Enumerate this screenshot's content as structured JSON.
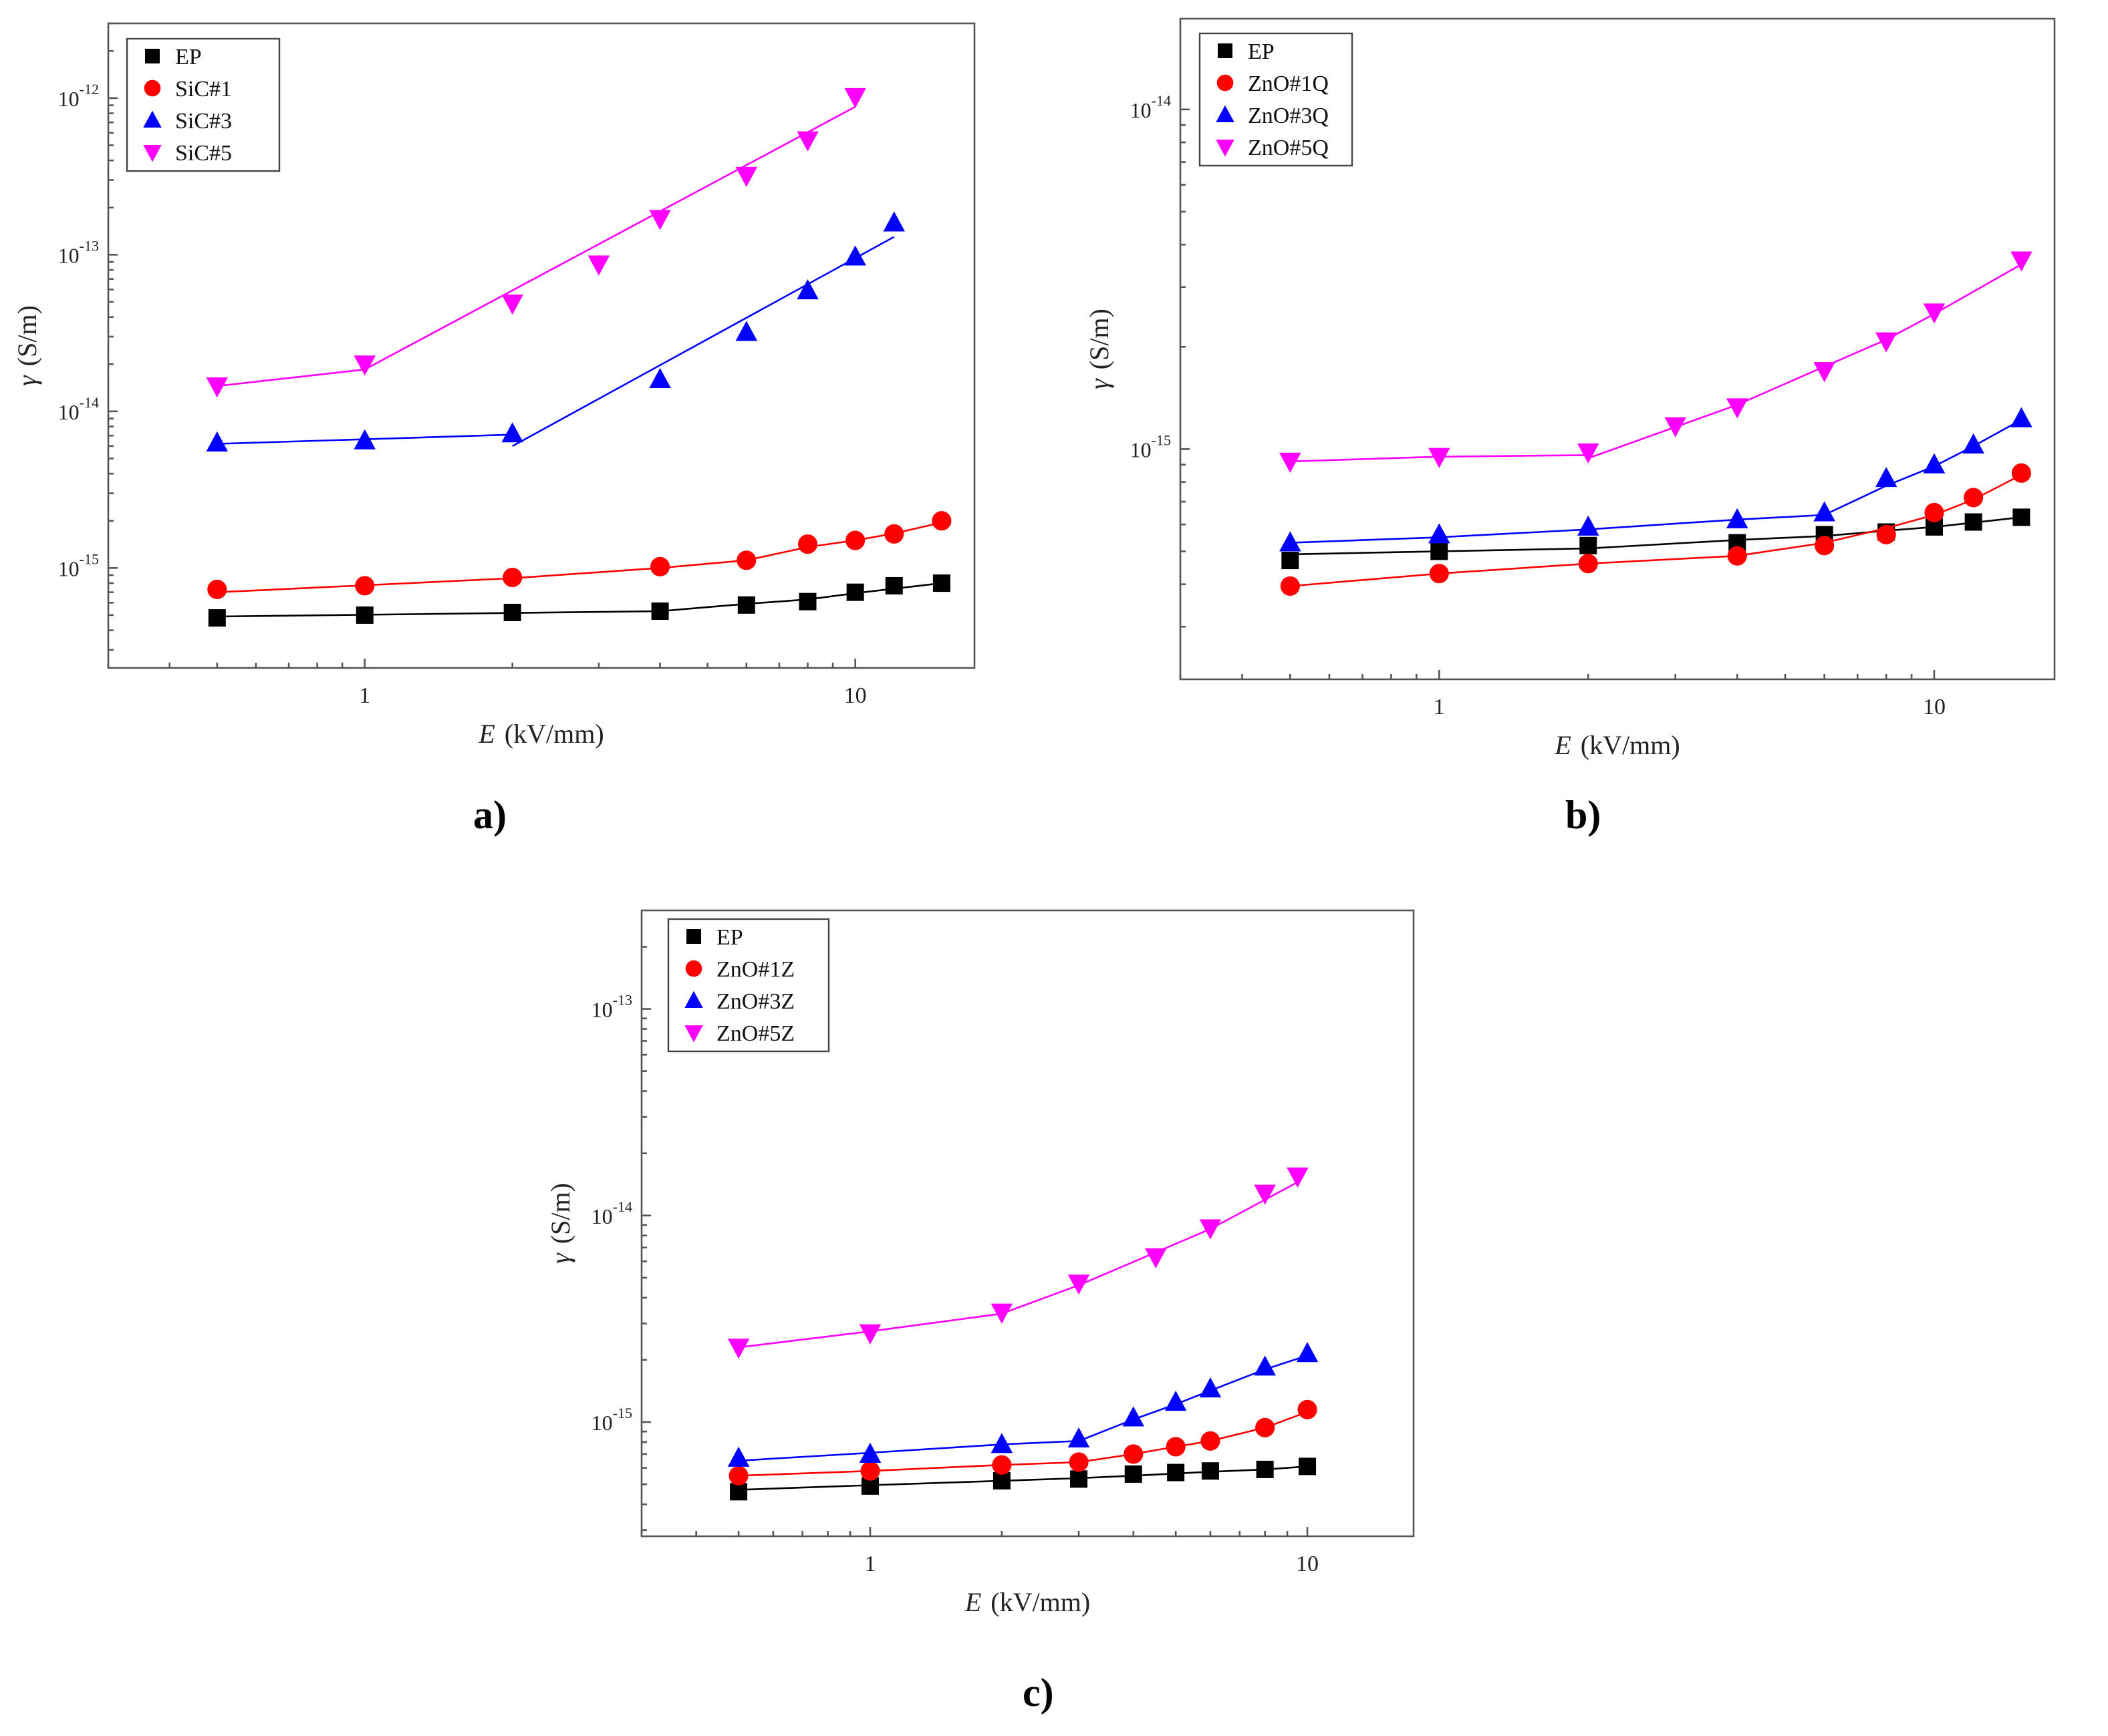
{
  "colors": {
    "EP": "#000000",
    "red": "#ff0000",
    "blue": "#0000ff",
    "magenta": "#ff00ff"
  },
  "panel_labels": {
    "a": "a)",
    "b": "b)",
    "c": "c)"
  },
  "chart_data": [
    {
      "id": "a",
      "type": "scatter",
      "xscale": "log",
      "yscale": "log",
      "xlabel_var": "E",
      "xlabel_unit": "(kV/mm)",
      "ylabel_var": "γ",
      "ylabel_unit": "(S/m)",
      "xlim": [
        0.3,
        17.5
      ],
      "ylim": [
        2.3e-16,
        3e-12
      ],
      "xticks": [
        {
          "v": 1,
          "t": "1"
        },
        {
          "v": 10,
          "t": "10"
        }
      ],
      "yticks": [
        {
          "v": 1e-15,
          "m": "10",
          "e": "-15"
        },
        {
          "v": 1e-14,
          "m": "10",
          "e": "-14"
        },
        {
          "v": 1e-13,
          "m": "10",
          "e": "-13"
        },
        {
          "v": 1e-12,
          "m": "10",
          "e": "-12"
        }
      ],
      "legend_position": "top-left",
      "series": [
        {
          "name": "EP",
          "marker": "square",
          "color": "#000000",
          "x": [
            0.5,
            1,
            2,
            4,
            6,
            8,
            10,
            12,
            15
          ],
          "y": [
            4.8e-16,
            5e-16,
            5.2e-16,
            5.3e-16,
            5.8e-16,
            6.1e-16,
            7e-16,
            7.7e-16,
            8e-16
          ],
          "fit": [
            [
              [
                0.5,
                4.9e-16
              ],
              [
                4,
                5.3e-16
              ],
              [
                6,
                5.9e-16
              ],
              [
                8,
                6.3e-16
              ],
              [
                10,
                6.9e-16
              ],
              [
                15,
                8e-16
              ]
            ]
          ]
        },
        {
          "name": "SiC#1",
          "marker": "circle",
          "color": "#ff0000",
          "x": [
            0.5,
            1,
            2,
            4,
            6,
            8,
            10,
            12,
            15
          ],
          "y": [
            7.3e-16,
            7.7e-16,
            8.7e-16,
            1.02e-15,
            1.12e-15,
            1.42e-15,
            1.5e-15,
            1.65e-15,
            2e-15
          ],
          "fit": [
            [
              [
                0.5,
                7e-16
              ],
              [
                2,
                8.6e-16
              ],
              [
                4,
                1e-15
              ],
              [
                6,
                1.12e-15
              ],
              [
                8,
                1.36e-15
              ],
              [
                10,
                1.5e-15
              ],
              [
                12,
                1.66e-15
              ],
              [
                15,
                1.95e-15
              ]
            ]
          ]
        },
        {
          "name": "SiC#3",
          "marker": "triangle-up",
          "color": "#0000ff",
          "x": [
            0.5,
            1,
            2,
            4,
            6,
            8,
            10,
            12
          ],
          "y": [
            6.3e-15,
            6.5e-15,
            7.2e-15,
            1.6e-14,
            3.2e-14,
            5.9e-14,
            9.7e-14,
            1.6e-13
          ],
          "fit": [
            [
              [
                0.5,
                6.2e-15
              ],
              [
                2,
                7.1e-15
              ]
            ],
            [
              [
                2,
                6e-15
              ],
              [
                12,
                1.3e-13
              ]
            ]
          ]
        },
        {
          "name": "SiC#5",
          "marker": "triangle-down",
          "color": "#ff00ff",
          "x": [
            0.5,
            1,
            2,
            3,
            4,
            6,
            8,
            10
          ],
          "y": [
            1.45e-14,
            2e-14,
            4.9e-14,
            8.7e-14,
            1.7e-13,
            3.2e-13,
            5.4e-13,
            1.02e-12
          ],
          "fit": [
            [
              [
                0.5,
                1.45e-14
              ],
              [
                1,
                1.85e-14
              ],
              [
                10,
                8.8e-13
              ]
            ]
          ]
        }
      ]
    },
    {
      "id": "b",
      "type": "scatter",
      "xscale": "log",
      "yscale": "log",
      "xlabel_var": "E",
      "xlabel_unit": "(kV/mm)",
      "ylabel_var": "γ",
      "ylabel_unit": "(S/m)",
      "xlim": [
        0.3,
        17.5
      ],
      "ylim": [
        2.1e-16,
        1.85e-14
      ],
      "xticks": [
        {
          "v": 1,
          "t": "1"
        },
        {
          "v": 10,
          "t": "10"
        }
      ],
      "yticks": [
        {
          "v": 1e-15,
          "m": "10",
          "e": "-15"
        },
        {
          "v": 1e-14,
          "m": "10",
          "e": "-14"
        }
      ],
      "legend_position": "top-left",
      "series": [
        {
          "name": "EP",
          "marker": "square",
          "color": "#000000",
          "x": [
            0.5,
            1,
            2,
            4,
            6,
            8,
            10,
            12,
            15
          ],
          "y": [
            4.7e-16,
            5e-16,
            5.2e-16,
            5.3e-16,
            5.6e-16,
            5.7e-16,
            5.9e-16,
            6.1e-16,
            6.3e-16
          ],
          "fit": [
            [
              [
                0.5,
                4.9e-16
              ],
              [
                1,
                5e-16
              ],
              [
                2,
                5.1e-16
              ],
              [
                4,
                5.4e-16
              ],
              [
                6,
                5.55e-16
              ],
              [
                8,
                5.75e-16
              ],
              [
                10,
                5.9e-16
              ],
              [
                15,
                6.3e-16
              ]
            ]
          ]
        },
        {
          "name": "ZnO#1Q",
          "marker": "circle",
          "color": "#ff0000",
          "x": [
            0.5,
            1,
            2,
            4,
            6,
            8,
            10,
            12,
            15
          ],
          "y": [
            3.95e-16,
            4.3e-16,
            4.6e-16,
            4.85e-16,
            5.2e-16,
            5.6e-16,
            6.5e-16,
            7.2e-16,
            8.5e-16
          ],
          "fit": [
            [
              [
                0.5,
                3.95e-16
              ],
              [
                1,
                4.3e-16
              ],
              [
                2,
                4.6e-16
              ],
              [
                4,
                4.85e-16
              ],
              [
                6,
                5.3e-16
              ],
              [
                8,
                5.85e-16
              ],
              [
                10,
                6.4e-16
              ],
              [
                12,
                7.1e-16
              ],
              [
                15,
                8.4e-16
              ]
            ]
          ]
        },
        {
          "name": "ZnO#3Q",
          "marker": "triangle-up",
          "color": "#0000ff",
          "x": [
            0.5,
            1,
            2,
            4,
            6,
            8,
            10,
            12,
            15
          ],
          "y": [
            5.3e-16,
            5.6e-16,
            5.9e-16,
            6.2e-16,
            6.5e-16,
            8.2e-16,
            9e-16,
            1.03e-15,
            1.23e-15
          ],
          "fit": [
            [
              [
                0.5,
                5.3e-16
              ],
              [
                1,
                5.5e-16
              ],
              [
                2,
                5.8e-16
              ],
              [
                4,
                6.2e-16
              ],
              [
                6,
                6.4e-16
              ],
              [
                8,
                7.8e-16
              ],
              [
                10,
                8.9e-16
              ],
              [
                12,
                1.02e-15
              ],
              [
                15,
                1.22e-15
              ]
            ]
          ]
        },
        {
          "name": "ZnO#5Q",
          "marker": "triangle-down",
          "color": "#ff00ff",
          "x": [
            0.5,
            1,
            2,
            3,
            4,
            6,
            8,
            10,
            15
          ],
          "y": [
            9.2e-16,
            9.5e-16,
            9.8e-16,
            1.17e-15,
            1.33e-15,
            1.7e-15,
            2.08e-15,
            2.53e-15,
            3.6e-15
          ],
          "fit": [
            [
              [
                0.5,
                9.2e-16
              ],
              [
                1,
                9.5e-16
              ],
              [
                2,
                9.6e-16
              ]
            ],
            [
              [
                2,
                9.4e-16
              ],
              [
                4,
                1.35e-15
              ],
              [
                6,
                1.75e-15
              ],
              [
                8,
                2.1e-15
              ],
              [
                10,
                2.5e-15
              ],
              [
                15,
                3.5e-15
              ]
            ]
          ]
        }
      ]
    },
    {
      "id": "c",
      "type": "scatter",
      "xscale": "log",
      "yscale": "log",
      "xlabel_var": "E",
      "xlabel_unit": "(kV/mm)",
      "ylabel_var": "γ",
      "ylabel_unit": "(S/m)",
      "xlim": [
        0.3,
        17.5
      ],
      "ylim": [
        2.8e-16,
        3e-13
      ],
      "xticks": [
        {
          "v": 1,
          "t": "1"
        },
        {
          "v": 10,
          "t": "10"
        }
      ],
      "yticks": [
        {
          "v": 1e-15,
          "m": "10",
          "e": "-15"
        },
        {
          "v": 1e-14,
          "m": "10",
          "e": "-14"
        },
        {
          "v": 1e-13,
          "m": "10",
          "e": "-13"
        }
      ],
      "legend_position": "top-left",
      "series": [
        {
          "name": "EP",
          "marker": "square",
          "color": "#000000",
          "x": [
            0.5,
            1,
            2,
            3,
            4,
            5,
            6,
            8,
            10
          ],
          "y": [
            4.6e-16,
            4.9e-16,
            5.2e-16,
            5.3e-16,
            5.6e-16,
            5.7e-16,
            5.8e-16,
            5.9e-16,
            6.1e-16
          ],
          "fit": [
            [
              [
                0.5,
                4.7e-16
              ],
              [
                1,
                4.95e-16
              ],
              [
                2,
                5.2e-16
              ],
              [
                3,
                5.35e-16
              ],
              [
                4,
                5.5e-16
              ],
              [
                6,
                5.75e-16
              ],
              [
                8,
                5.9e-16
              ],
              [
                10,
                6.1e-16
              ]
            ]
          ]
        },
        {
          "name": "ZnO#1Z",
          "marker": "circle",
          "color": "#ff0000",
          "x": [
            0.5,
            1,
            2,
            3,
            4,
            5,
            6,
            8,
            10
          ],
          "y": [
            5.5e-16,
            5.8e-16,
            6.2e-16,
            6.4e-16,
            7e-16,
            7.6e-16,
            8.1e-16,
            9.4e-16,
            1.15e-15
          ],
          "fit": [
            [
              [
                0.5,
                5.5e-16
              ],
              [
                1,
                5.8e-16
              ],
              [
                2,
                6.2e-16
              ],
              [
                3,
                6.4e-16
              ],
              [
                4,
                7e-16
              ],
              [
                5,
                7.6e-16
              ],
              [
                6,
                8.1e-16
              ],
              [
                8,
                9.4e-16
              ],
              [
                10,
                1.12e-15
              ]
            ]
          ]
        },
        {
          "name": "ZnO#3Z",
          "marker": "triangle-up",
          "color": "#0000ff",
          "x": [
            0.5,
            1,
            2,
            3,
            4,
            5,
            6,
            8,
            10
          ],
          "y": [
            6.7e-16,
            7e-16,
            7.8e-16,
            8.3e-16,
            1.05e-15,
            1.25e-15,
            1.45e-15,
            1.85e-15,
            2.15e-15
          ],
          "fit": [
            [
              [
                0.5,
                6.5e-16
              ],
              [
                1,
                7.1e-16
              ],
              [
                2,
                7.8e-16
              ],
              [
                3,
                8.1e-16
              ],
              [
                4,
                1.03e-15
              ],
              [
                5,
                1.22e-15
              ],
              [
                6,
                1.42e-15
              ],
              [
                8,
                1.8e-15
              ],
              [
                10,
                2.1e-15
              ]
            ]
          ]
        },
        {
          "name": "ZnO#5Z",
          "marker": "triangle-down",
          "color": "#ff00ff",
          "x": [
            0.5,
            1,
            2,
            3,
            4.5,
            6,
            8,
            9.5
          ],
          "y": [
            2.3e-15,
            2.7e-15,
            3.4e-15,
            4.7e-15,
            6.3e-15,
            8.7e-15,
            1.28e-14,
            1.55e-14
          ],
          "fit": [
            [
              [
                0.5,
                2.3e-15
              ],
              [
                1,
                2.75e-15
              ],
              [
                2,
                3.35e-15
              ],
              [
                3,
                4.6e-15
              ],
              [
                6,
                8.6e-15
              ],
              [
                9.5,
                1.45e-14
              ]
            ]
          ]
        }
      ]
    }
  ]
}
